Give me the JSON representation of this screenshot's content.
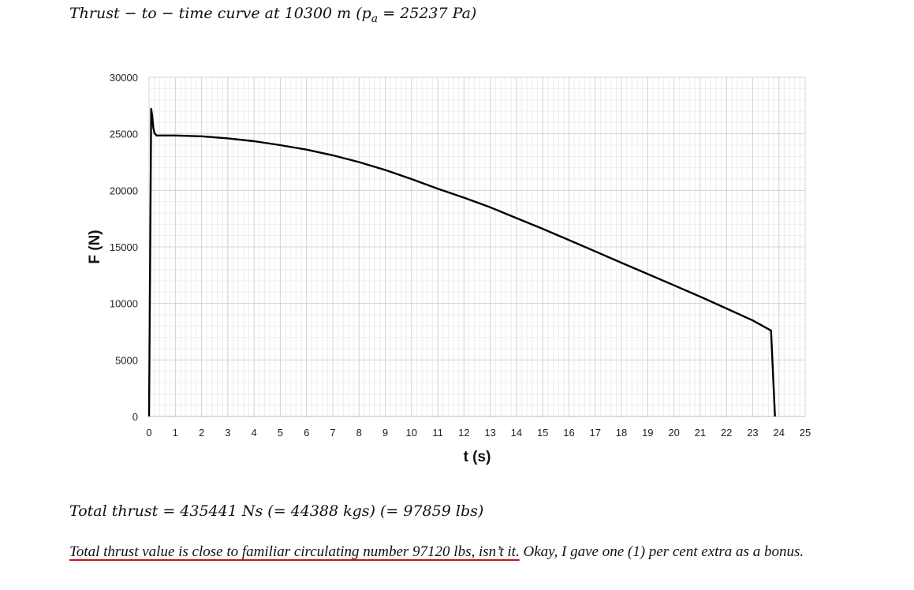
{
  "header": {
    "title": "Thrust − to − time curve at 10300 m (p",
    "title_sub": "a",
    "title_tail": " = 25237 Pa)"
  },
  "chart_data": {
    "type": "line",
    "xlabel": "t (s)",
    "ylabel": "F (N)",
    "xlim": [
      0,
      25
    ],
    "ylim": [
      0,
      30000
    ],
    "x_ticks": [
      0,
      1,
      2,
      3,
      4,
      5,
      6,
      7,
      8,
      9,
      10,
      11,
      12,
      13,
      14,
      15,
      16,
      17,
      18,
      19,
      20,
      21,
      22,
      23,
      24,
      25
    ],
    "y_ticks": [
      0,
      5000,
      10000,
      15000,
      20000,
      25000,
      30000
    ],
    "grid": true,
    "legend": "none",
    "line_color": "#000000",
    "series": [
      {
        "x": [
          0,
          0.08,
          0.12,
          0.16,
          0.2,
          0.28,
          0.35,
          0.5,
          1,
          2,
          3,
          4,
          5,
          6,
          7,
          8,
          9,
          10,
          11,
          12,
          13,
          14,
          15,
          16,
          17,
          18,
          19,
          20,
          21,
          22,
          23,
          23.7,
          23.85
        ],
        "y": [
          0,
          27200,
          26600,
          25600,
          25100,
          24850,
          24850,
          24850,
          24850,
          24780,
          24600,
          24350,
          24000,
          23600,
          23100,
          22500,
          21800,
          21000,
          20150,
          19350,
          18500,
          17550,
          16600,
          15600,
          14600,
          13600,
          12600,
          11600,
          10600,
          9550,
          8500,
          7600,
          0
        ]
      }
    ]
  },
  "summary": {
    "total_line": "Total thrust = 435441 Ns (= 44388 kgs) (= 97859 lbs)"
  },
  "note": {
    "highlighted": "Total thrust value is close to familiar circulating number 97120 lbs, isn’t it.",
    "rest": " Okay, I gave one (1) per cent extra as a bonus."
  }
}
